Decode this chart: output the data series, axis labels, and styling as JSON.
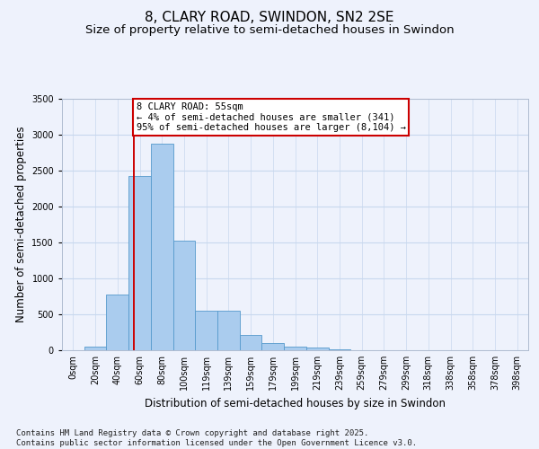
{
  "title_line1": "8, CLARY ROAD, SWINDON, SN2 2SE",
  "title_line2": "Size of property relative to semi-detached houses in Swindon",
  "xlabel": "Distribution of semi-detached houses by size in Swindon",
  "ylabel": "Number of semi-detached properties",
  "categories": [
    "0sqm",
    "20sqm",
    "40sqm",
    "60sqm",
    "80sqm",
    "100sqm",
    "119sqm",
    "139sqm",
    "159sqm",
    "179sqm",
    "199sqm",
    "219sqm",
    "239sqm",
    "259sqm",
    "279sqm",
    "299sqm",
    "318sqm",
    "338sqm",
    "358sqm",
    "378sqm",
    "398sqm"
  ],
  "bar_heights": [
    5,
    50,
    780,
    2430,
    2880,
    1520,
    550,
    550,
    210,
    95,
    55,
    35,
    10,
    5,
    2,
    2,
    1,
    0,
    0,
    0,
    0
  ],
  "bar_color": "#aaccee",
  "bar_edge_color": "#5599cc",
  "grid_color": "#c8d8ee",
  "background_color": "#eef2fc",
  "property_line_x": 2.75,
  "property_label": "8 CLARY ROAD: 55sqm",
  "annotation_line1": "← 4% of semi-detached houses are smaller (341)",
  "annotation_line2": "95% of semi-detached houses are larger (8,104) →",
  "annotation_box_color": "#ffffff",
  "annotation_box_edge": "#cc0000",
  "line_color": "#cc0000",
  "ylim": [
    0,
    3500
  ],
  "yticks": [
    0,
    500,
    1000,
    1500,
    2000,
    2500,
    3000,
    3500
  ],
  "footnote_line1": "Contains HM Land Registry data © Crown copyright and database right 2025.",
  "footnote_line2": "Contains public sector information licensed under the Open Government Licence v3.0.",
  "title_fontsize": 11,
  "subtitle_fontsize": 9.5,
  "axis_label_fontsize": 8.5,
  "tick_fontsize": 7,
  "annotation_fontsize": 7.5,
  "footnote_fontsize": 6.5
}
